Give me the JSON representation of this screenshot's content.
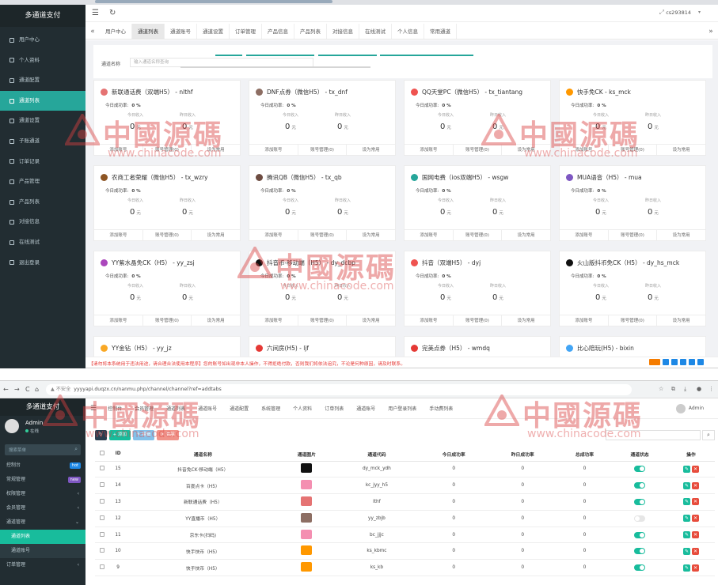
{
  "panel1": {
    "app_title": "多通道支付",
    "menu": [
      {
        "label": "用户中心",
        "active": false
      },
      {
        "label": "个人资料",
        "active": false
      },
      {
        "label": "通道配置",
        "active": false
      },
      {
        "label": "通道列表",
        "active": true
      },
      {
        "label": "通道设置",
        "active": false
      },
      {
        "label": "子账通道",
        "active": false
      },
      {
        "label": "订单记录",
        "active": false
      },
      {
        "label": "产品管理",
        "active": false
      },
      {
        "label": "产品列表",
        "active": false
      },
      {
        "label": "对接信息",
        "active": false
      },
      {
        "label": "在线测试",
        "active": false
      },
      {
        "label": "退出登录",
        "active": false
      }
    ],
    "header": {
      "menu_icon": "☰",
      "refresh_icon": "↻",
      "expand_icon": "⤢",
      "username": "cs293814"
    },
    "tabs": [
      "用户中心",
      "通道列表",
      "通道账号",
      "通道设置",
      "订单管理",
      "产品信息",
      "产品列表",
      "对接信息",
      "在线测试",
      "个人信息",
      "常用通道"
    ],
    "active_tab": "通道列表",
    "search": {
      "label": "通道名称",
      "placeholder": "输入通道名称查询"
    },
    "card_labels": {
      "rate": "今日成功率:",
      "today": "今日收入",
      "yesterday": "昨日收入",
      "unit": "元",
      "foot": [
        "添加账号",
        "账号管理(0)",
        "设为常用"
      ]
    },
    "cards": [
      {
        "title": "新联通话费（双端H5） - nlthf",
        "rate": "0 %",
        "today": "0",
        "yesterday": "0",
        "icon_color": "#e57373"
      },
      {
        "title": "DNF点券（微信H5） - tx_dnf",
        "rate": "0 %",
        "today": "0",
        "yesterday": "0",
        "icon_color": "#8d6e63"
      },
      {
        "title": "QQ天堂PC（微信H5） - tx_tiantang",
        "rate": "0 %",
        "today": "0",
        "yesterday": "0",
        "icon_color": "#ef5350"
      },
      {
        "title": "快手免CK - ks_mck",
        "rate": "0 %",
        "today": "0",
        "yesterday": "0",
        "icon_color": "#ff9800"
      },
      {
        "title": "农商工者荣耀（微信H5） - tx_wzry",
        "rate": "0 %",
        "today": "0",
        "yesterday": "0",
        "icon_color": "#8d5524"
      },
      {
        "title": "腾讯QB（微信H5） - tx_qb",
        "rate": "0 %",
        "today": "0",
        "yesterday": "0",
        "icon_color": "#6d4c41"
      },
      {
        "title": "国网电费（ios双端H5） - wsgw",
        "rate": "0 %",
        "today": "0",
        "yesterday": "0",
        "icon_color": "#26a69a"
      },
      {
        "title": "MUA语音（H5） - mua",
        "rate": "0 %",
        "today": "0",
        "yesterday": "0",
        "icon_color": "#7e57c2"
      },
      {
        "title": "YY紫水晶免CK（H5） - yy_zsj",
        "rate": "0 %",
        "today": "0",
        "yesterday": "0",
        "icon_color": "#ab47bc"
      },
      {
        "title": "抖音币-移动端（H5） - dy_dcbp",
        "rate": "0 %",
        "today": "0",
        "yesterday": "0",
        "icon_color": "#111111"
      },
      {
        "title": "抖音（双端H5） - dyj",
        "rate": "0 %",
        "today": "0",
        "yesterday": "0",
        "icon_color": "#ef5350"
      },
      {
        "title": "火山版抖币免CK（H5） - dy_hs_mck",
        "rate": "0 %",
        "today": "0",
        "yesterday": "0",
        "icon_color": "#111111"
      },
      {
        "title": "YY金钻（H5） - yy_jz",
        "rate": "",
        "today": "",
        "yesterday": "",
        "icon_color": "#f9a825"
      },
      {
        "title": "六间房(H5) - ljf",
        "rate": "",
        "today": "",
        "yesterday": "",
        "icon_color": "#e53935"
      },
      {
        "title": "完美点券（H5） - wmdq",
        "rate": "",
        "today": "",
        "yesterday": "",
        "icon_color": "#e53935"
      },
      {
        "title": "比心陪玩(H5) - bixin",
        "rate": "",
        "today": "",
        "yesterday": "",
        "icon_color": "#42a5f5"
      }
    ],
    "notice": "【请勿将本系统用于违法用途，请合理合法使用本程序】您的账号如出现非本人操作，不得拒绝付款，否则我们将依法追究，不论是何种原因，请及时联系。"
  },
  "panel2": {
    "browser": {
      "back": "←",
      "forward": "→",
      "reload": "C",
      "home": "⌂",
      "security": "▲ 不安全",
      "url": "yyyyapi.duqzx.cn/nanmu.php/channel/channel?ref=addtabs"
    },
    "app_title": "多通道支付",
    "user": {
      "name": "Admin",
      "status": "在线"
    },
    "search_placeholder": "搜索菜单",
    "menu": [
      {
        "label": "控制台",
        "badge": "hot",
        "badge_color": "#1e88e5",
        "arrow": "",
        "type": "main"
      },
      {
        "label": "常规管理",
        "badge": "new",
        "badge_color": "#7e57c2",
        "arrow": "",
        "type": "main"
      },
      {
        "label": "权限管理",
        "badge": "",
        "badge_color": "",
        "arrow": "‹",
        "type": "main"
      },
      {
        "label": "会员管理",
        "badge": "",
        "badge_color": "",
        "arrow": "‹",
        "type": "main"
      },
      {
        "label": "通道管理",
        "badge": "",
        "badge_color": "",
        "arrow": "⌄",
        "type": "main"
      },
      {
        "label": "通道列表",
        "badge": "",
        "badge_color": "",
        "arrow": "",
        "type": "active"
      },
      {
        "label": "通道账号",
        "badge": "",
        "badge_color": "",
        "arrow": "",
        "type": "sub"
      },
      {
        "label": "订单管理",
        "badge": "",
        "badge_color": "",
        "arrow": "‹",
        "type": "main"
      }
    ],
    "topnav": [
      "控制台",
      "会员管理",
      "通道列表",
      "通道账号",
      "通道配置",
      "系统管理",
      "个人资料",
      "订单列表",
      "通道账号",
      "用户登录列表",
      "手动费列表"
    ],
    "admin_label": "Admin",
    "toolbar": {
      "refresh": "↻",
      "add": "+ 添加",
      "edit": "✎ 编辑",
      "delete": "✕ 删除",
      "search_icon": "⌕"
    },
    "table_headers": [
      "",
      "ID",
      "通道名称",
      "通道图片",
      "通道代码",
      "今日成功率",
      "昨日成功率",
      "总成功率",
      "通道状态",
      "操作"
    ],
    "rows": [
      {
        "id": "15",
        "name": "抖音免CK·移动端（H5）",
        "code": "dy_mck_ydh",
        "today": "0",
        "yesterday": "0",
        "total": "0",
        "enabled": true,
        "thumb": "#111111"
      },
      {
        "id": "14",
        "name": "百度点卡（H5）",
        "code": "kc_jyy_h5",
        "today": "0",
        "yesterday": "0",
        "total": "0",
        "enabled": true,
        "thumb": "#f48fb1"
      },
      {
        "id": "13",
        "name": "新联通话费（H5）",
        "code": "lthf",
        "today": "0",
        "yesterday": "0",
        "total": "0",
        "enabled": true,
        "thumb": "#e57373"
      },
      {
        "id": "12",
        "name": "YY直播币（H5）",
        "code": "yy_zbjb",
        "today": "0",
        "yesterday": "0",
        "total": "0",
        "enabled": false,
        "thumb": "#8d6e63"
      },
      {
        "id": "11",
        "name": "京东卡(扫码)",
        "code": "bc_jjjc",
        "today": "0",
        "yesterday": "0",
        "total": "0",
        "enabled": true,
        "thumb": "#f48fb1"
      },
      {
        "id": "10",
        "name": "快手快币（H5）",
        "code": "ks_kbmc",
        "today": "0",
        "yesterday": "0",
        "total": "0",
        "enabled": true,
        "thumb": "#ff9800"
      },
      {
        "id": "9",
        "name": "快手快币（H5）",
        "code": "ks_kb",
        "today": "0",
        "yesterday": "0",
        "total": "0",
        "enabled": true,
        "thumb": "#ff9800"
      }
    ]
  },
  "watermark": {
    "cn": "中國源碼",
    "en": "www.chinacode.com"
  },
  "colors": {
    "accent": "#26a69a",
    "admin_accent": "#18bc9c",
    "sidebar": "#222d32",
    "danger": "#e53935",
    "primary": "#1e88e5"
  }
}
